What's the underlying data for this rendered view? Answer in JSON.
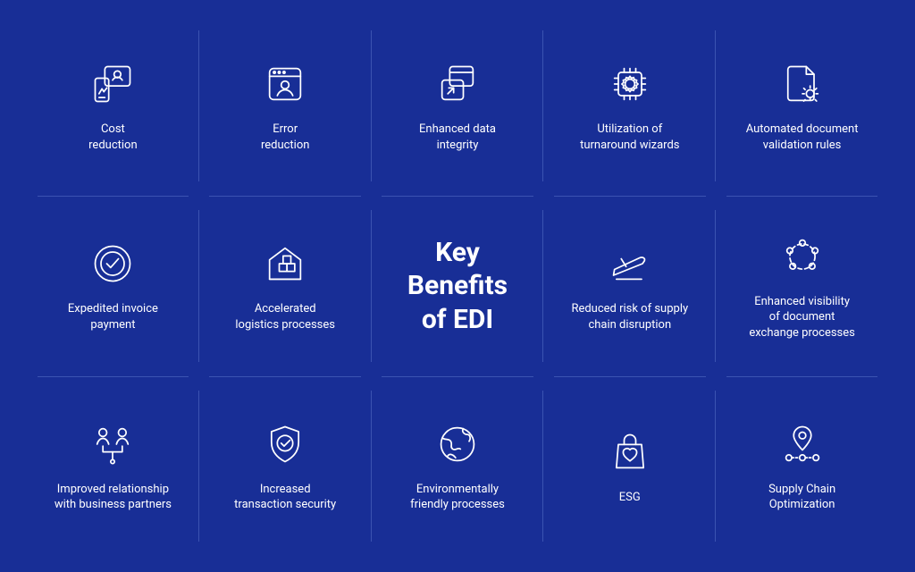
{
  "type": "infographic",
  "background_color": "#182e96",
  "grid_line_color": "#5a73c8",
  "text_color": "#ffffff",
  "icon_stroke": "#ffffff",
  "icon_stroke_width": 1.6,
  "grid": {
    "cols": 5,
    "rows": 3
  },
  "label_fontsize": 13,
  "title_fontsize": 30,
  "title_weight": 700,
  "title": "Key\nBenefits\nof EDI",
  "items": [
    {
      "label": "Cost\nreduction",
      "icon": "devices"
    },
    {
      "label": "Error\nreduction",
      "icon": "browser-user"
    },
    {
      "label": "Enhanced data\nintegrity",
      "icon": "windows-share"
    },
    {
      "label": "Utilization of\nturnaround wizards",
      "icon": "cpu-gear"
    },
    {
      "label": "Automated document\nvalidation rules",
      "icon": "doc-gear"
    },
    {
      "label": "Expedited invoice\npayment",
      "icon": "circle-check"
    },
    {
      "label": "Accelerated\nlogistics processes",
      "icon": "warehouse"
    },
    {
      "title": true
    },
    {
      "label": "Reduced risk of supply\nchain disruption",
      "icon": "plane"
    },
    {
      "label": "Enhanced visibility\nof document\nexchange processes",
      "icon": "nodes-ring"
    },
    {
      "label": "Improved relationship\nwith business partners",
      "icon": "people-link"
    },
    {
      "label": "Increased\ntransaction security",
      "icon": "shield-check"
    },
    {
      "label": "Environmentally\nfriendly processes",
      "icon": "globe"
    },
    {
      "label": "ESG",
      "icon": "bag-heart"
    },
    {
      "label": "Supply Chain\nOptimization",
      "icon": "pin-route"
    }
  ]
}
